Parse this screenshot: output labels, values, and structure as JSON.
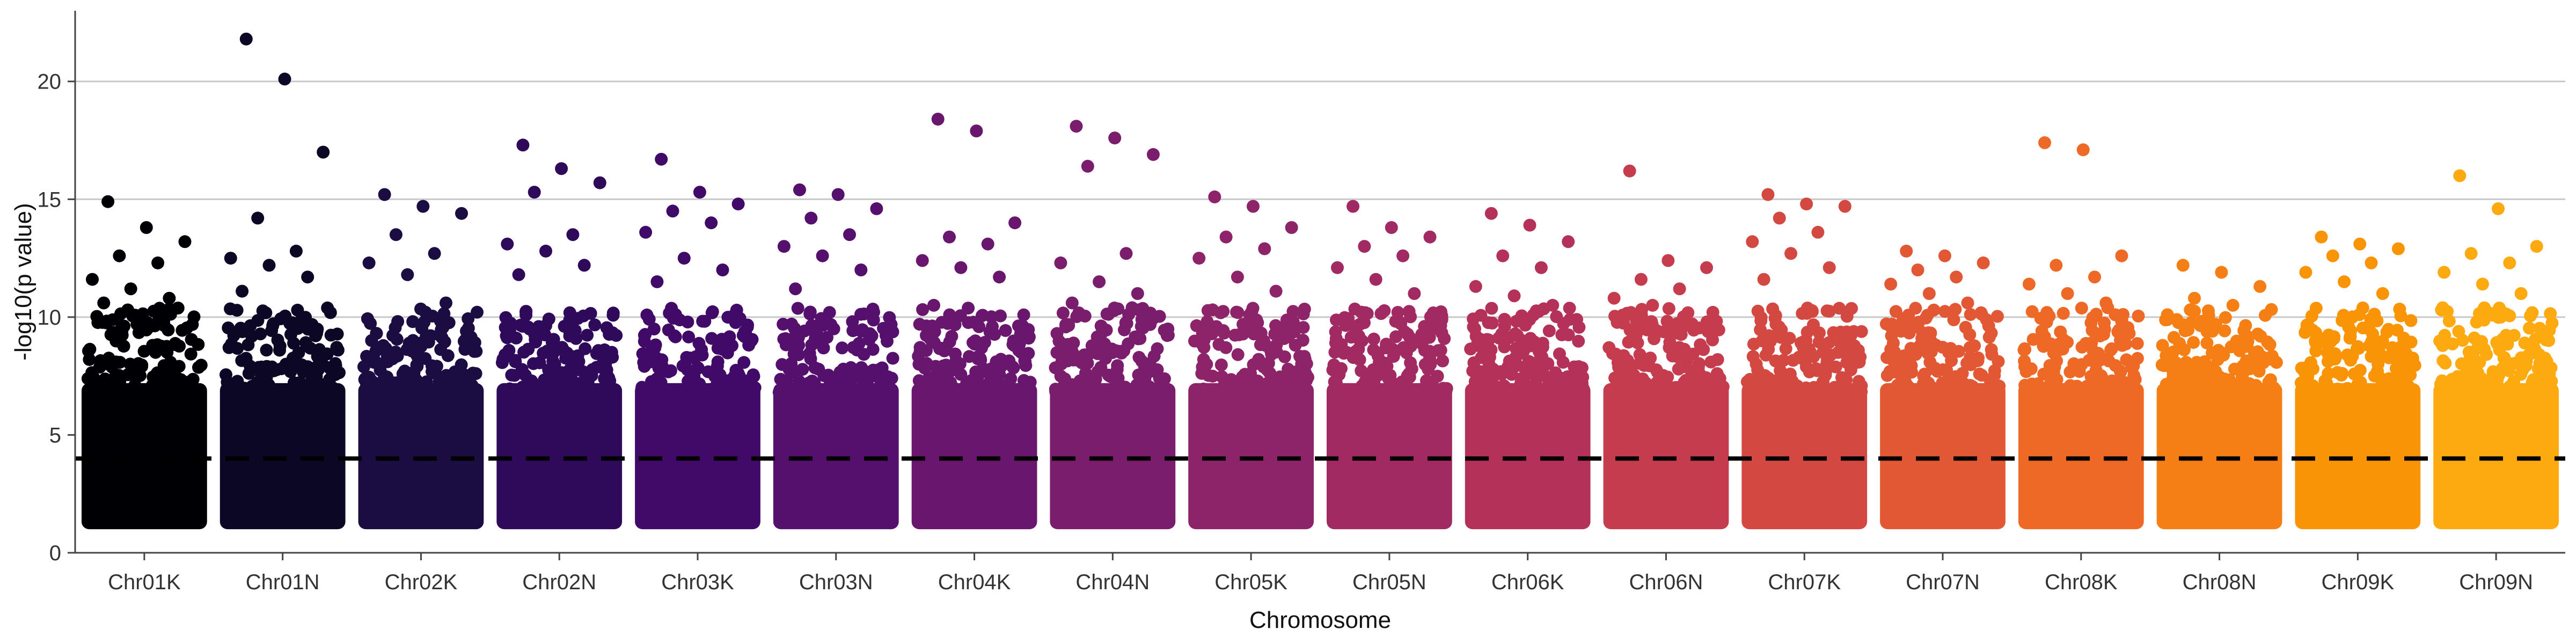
{
  "chart_data": {
    "type": "scatter",
    "title": "",
    "xlabel": "Chromosome",
    "ylabel": "-log10(p value)",
    "ylim": [
      0,
      23
    ],
    "yticks": [
      0,
      5,
      10,
      15,
      20
    ],
    "grid": "horizontal major lines at 10, 15, 20",
    "threshold": 4,
    "categories": [
      "Chr01K",
      "Chr01N",
      "Chr02K",
      "Chr02N",
      "Chr03K",
      "Chr03N",
      "Chr04K",
      "Chr04N",
      "Chr05K",
      "Chr05N",
      "Chr06K",
      "Chr06N",
      "Chr07K",
      "Chr07N",
      "Chr08K",
      "Chr08N",
      "Chr09K",
      "Chr09N"
    ],
    "colors": [
      "#000004",
      "#0b0724",
      "#1b0c41",
      "#2f0a5b",
      "#420a68",
      "#550f6d",
      "#68166e",
      "#7a1d6d",
      "#8d2369",
      "#a12a63",
      "#b4325a",
      "#c53c4f",
      "#d44842",
      "#e25734",
      "#ed6925",
      "#f57e15",
      "#fa9407",
      "#fcaa0f"
    ],
    "series": [
      {
        "category": "Chr01K",
        "max_y": 14.9,
        "top_points": [
          14.9,
          13.8,
          13.2,
          12.6,
          12.3,
          11.6,
          11.2,
          10.8,
          10.6
        ]
      },
      {
        "category": "Chr01N",
        "max_y": 21.8,
        "top_points": [
          21.8,
          20.1,
          17.0,
          14.2,
          12.8,
          12.5,
          12.2,
          11.7,
          11.1
        ]
      },
      {
        "category": "Chr02K",
        "max_y": 15.2,
        "top_points": [
          15.2,
          14.7,
          14.4,
          13.5,
          12.7,
          12.3,
          11.8,
          10.6
        ]
      },
      {
        "category": "Chr02N",
        "max_y": 17.3,
        "top_points": [
          17.3,
          16.3,
          15.7,
          15.3,
          13.5,
          13.1,
          12.8,
          12.2,
          11.8
        ]
      },
      {
        "category": "Chr03K",
        "max_y": 16.7,
        "top_points": [
          16.7,
          15.3,
          14.8,
          14.5,
          14.0,
          13.6,
          12.5,
          12.0,
          11.5
        ]
      },
      {
        "category": "Chr03N",
        "max_y": 15.4,
        "top_points": [
          15.4,
          15.2,
          14.6,
          14.2,
          13.5,
          13.0,
          12.6,
          12.0,
          11.2
        ]
      },
      {
        "category": "Chr04K",
        "max_y": 18.4,
        "top_points": [
          18.4,
          17.9,
          14.0,
          13.4,
          13.1,
          12.4,
          12.1,
          11.7,
          10.5
        ]
      },
      {
        "category": "Chr04N",
        "max_y": 18.1,
        "top_points": [
          18.1,
          17.6,
          16.9,
          16.4,
          12.7,
          12.3,
          11.5,
          11.0,
          10.6
        ]
      },
      {
        "category": "Chr05K",
        "max_y": 15.1,
        "top_points": [
          15.1,
          14.7,
          13.8,
          13.4,
          12.9,
          12.5,
          11.7,
          11.1
        ]
      },
      {
        "category": "Chr05N",
        "max_y": 14.7,
        "top_points": [
          14.7,
          13.8,
          13.4,
          13.0,
          12.6,
          12.1,
          11.6,
          11.0
        ]
      },
      {
        "category": "Chr06K",
        "max_y": 14.4,
        "top_points": [
          14.4,
          13.9,
          13.2,
          12.6,
          12.1,
          11.3,
          10.9,
          10.5
        ]
      },
      {
        "category": "Chr06N",
        "max_y": 16.2,
        "top_points": [
          16.2,
          12.4,
          12.1,
          11.6,
          11.2,
          10.8,
          10.5
        ]
      },
      {
        "category": "Chr07K",
        "max_y": 15.2,
        "top_points": [
          15.2,
          14.8,
          14.7,
          14.2,
          13.6,
          13.2,
          12.7,
          12.1,
          11.6
        ]
      },
      {
        "category": "Chr07N",
        "max_y": 12.8,
        "top_points": [
          12.8,
          12.6,
          12.3,
          12.0,
          11.7,
          11.4,
          11.0,
          10.6
        ]
      },
      {
        "category": "Chr08K",
        "max_y": 17.4,
        "top_points": [
          17.4,
          17.1,
          12.6,
          12.2,
          11.7,
          11.4,
          11.0,
          10.6
        ]
      },
      {
        "category": "Chr08N",
        "max_y": 12.2,
        "top_points": [
          12.2,
          11.9,
          11.3,
          10.8,
          10.5,
          10.1,
          9.8
        ]
      },
      {
        "category": "Chr09K",
        "max_y": 13.4,
        "top_points": [
          13.4,
          13.1,
          12.9,
          12.6,
          12.3,
          11.9,
          11.5,
          11.0
        ]
      },
      {
        "category": "Chr09N",
        "max_y": 16.0,
        "top_points": [
          16.0,
          14.6,
          13.0,
          12.7,
          12.3,
          11.9,
          11.4,
          11.0
        ]
      }
    ]
  }
}
